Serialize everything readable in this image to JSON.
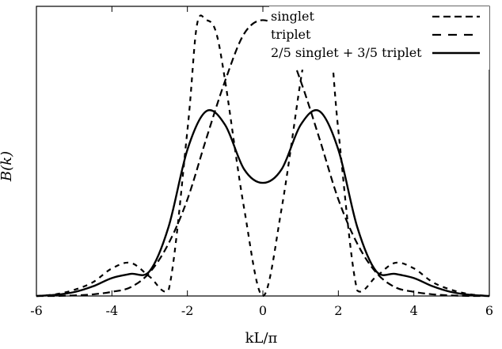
{
  "chart_data": {
    "type": "line",
    "title": "",
    "xlabel": "kL/π",
    "ylabel": "B(k)",
    "xlim": [
      -6,
      6
    ],
    "ylim": [
      0,
      1.05
    ],
    "xticks": [
      "-6",
      "-4",
      "-2",
      "0",
      "2",
      "4",
      "6"
    ],
    "yticks": [],
    "grid": false,
    "legend": "top-right",
    "series": [
      {
        "name": "singlet",
        "style": "dashed-long",
        "x": [
          -6,
          -5.5,
          -5,
          -4.5,
          -4,
          -3.5,
          -3,
          -2.5,
          -2,
          -1.5,
          -1,
          -0.5,
          0,
          0.5,
          1,
          1.5,
          2,
          2.5,
          3,
          3.5,
          4,
          4.5,
          5,
          5.5,
          6
        ],
        "y": [
          0,
          0,
          0.002,
          0.006,
          0.015,
          0.032,
          0.085,
          0.19,
          0.35,
          0.57,
          0.78,
          0.95,
          1.0,
          0.95,
          0.78,
          0.57,
          0.35,
          0.19,
          0.085,
          0.032,
          0.015,
          0.006,
          0.002,
          0,
          0
        ]
      },
      {
        "name": "triplet",
        "style": "dashed-short",
        "x": [
          -6,
          -5.5,
          -5,
          -4.5,
          -4,
          -3.5,
          -3,
          -2.5,
          -2,
          -1.75,
          -1.5,
          -1.25,
          -1,
          -0.5,
          0,
          0.5,
          1,
          1.25,
          1.5,
          1.75,
          2,
          2.5,
          3,
          3.5,
          4,
          4.5,
          5,
          5.5,
          6
        ],
        "y": [
          0,
          0.006,
          0.022,
          0.05,
          0.1,
          0.12,
          0.07,
          0.02,
          0.6,
          0.98,
          1.0,
          0.96,
          0.78,
          0.32,
          0,
          0.32,
          0.78,
          0.96,
          1.0,
          0.98,
          0.6,
          0.02,
          0.07,
          0.12,
          0.1,
          0.05,
          0.022,
          0.006,
          0
        ]
      },
      {
        "name": "2/5 singlet + 3/5 triplet",
        "style": "solid",
        "x": [
          -6,
          -5.5,
          -5,
          -4.5,
          -4,
          -3.5,
          -3,
          -2.5,
          -2,
          -1.5,
          -1,
          -0.5,
          0,
          0.5,
          1,
          1.5,
          2,
          2.5,
          3,
          3.5,
          4,
          4.5,
          5,
          5.5,
          6
        ],
        "y": [
          0,
          0.004,
          0.014,
          0.035,
          0.065,
          0.08,
          0.09,
          0.25,
          0.53,
          0.67,
          0.62,
          0.46,
          0.41,
          0.46,
          0.62,
          0.67,
          0.53,
          0.25,
          0.09,
          0.08,
          0.065,
          0.035,
          0.014,
          0.004,
          0
        ]
      }
    ]
  }
}
